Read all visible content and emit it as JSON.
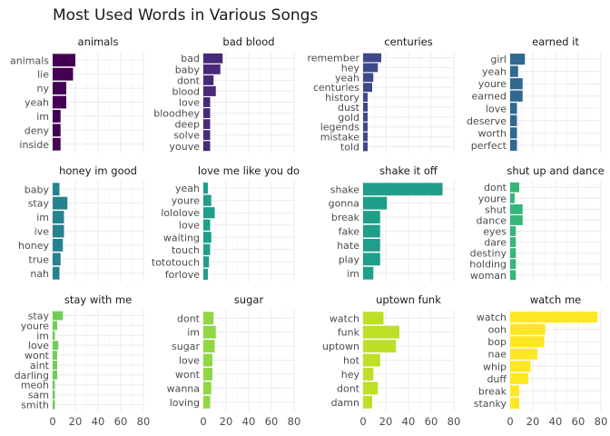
{
  "chart_data": {
    "type": "bar",
    "orientation": "horizontal",
    "title": "Most Used Words in Various Songs",
    "xlim": [
      0,
      80
    ],
    "x_ticks": [
      0,
      20,
      40,
      60,
      80
    ],
    "grid": true,
    "legend": "none",
    "layout": "facet-grid-3x4",
    "panels": [
      {
        "name": "animals",
        "color": "#440154",
        "categories": [
          "animals",
          "lie",
          "ny",
          "yeah",
          "im",
          "deny",
          "inside"
        ],
        "values": [
          20,
          18,
          12,
          12,
          7,
          7,
          7
        ]
      },
      {
        "name": "bad blood",
        "color": "#482878",
        "categories": [
          "bad",
          "baby",
          "dont",
          "blood",
          "love",
          "bloodhey",
          "deep",
          "solve",
          "youve"
        ],
        "values": [
          17,
          15,
          9,
          11,
          6,
          6,
          6,
          6,
          6
        ]
      },
      {
        "name": "centuries",
        "color": "#3e4989",
        "categories": [
          "remember",
          "hey",
          "yeah",
          "centuries",
          "history",
          "dust",
          "gold",
          "legends",
          "mistake",
          "told"
        ],
        "values": [
          16,
          13,
          9,
          8,
          4,
          4,
          4,
          4,
          4,
          4
        ]
      },
      {
        "name": "earned it",
        "color": "#31688e",
        "categories": [
          "girl",
          "yeah",
          "youre",
          "earned",
          "love",
          "deserve",
          "worth",
          "perfect"
        ],
        "values": [
          13,
          7,
          11,
          11,
          6,
          6,
          6,
          6
        ]
      },
      {
        "name": "honey im good",
        "color": "#26828e",
        "categories": [
          "baby",
          "stay",
          "im",
          "ive",
          "honey",
          "true",
          "nah"
        ],
        "values": [
          6,
          13,
          10,
          10,
          9,
          7,
          6
        ]
      },
      {
        "name": "love me like you do",
        "color": "#1f9e89",
        "categories": [
          "yeah",
          "youre",
          "lololove",
          "love",
          "waiting",
          "touch",
          "tototouch",
          "forlove"
        ],
        "values": [
          4,
          7,
          10,
          6,
          7,
          6,
          5,
          4
        ]
      },
      {
        "name": "shake it off",
        "color": "#1f9e89",
        "categories": [
          "shake",
          "gonna",
          "break",
          "fake",
          "hate",
          "play",
          "im"
        ],
        "values": [
          70,
          21,
          15,
          15,
          15,
          15,
          9
        ]
      },
      {
        "name": "shut up and dance",
        "color": "#35b779",
        "categories": [
          "dont",
          "youre",
          "shut",
          "dance",
          "eyes",
          "dare",
          "destiny",
          "holding",
          "woman"
        ],
        "values": [
          8,
          4,
          11,
          11,
          5,
          5,
          5,
          5,
          5
        ]
      },
      {
        "name": "stay with me",
        "color": "#6ece58",
        "categories": [
          "stay",
          "youre",
          "im",
          "love",
          "wont",
          "aint",
          "darling",
          "meoh",
          "sam",
          "smith"
        ],
        "values": [
          9,
          4,
          2,
          5,
          4,
          4,
          4,
          2,
          2,
          2
        ]
      },
      {
        "name": "sugar",
        "color": "#8fd744",
        "categories": [
          "dont",
          "im",
          "sugar",
          "love",
          "wont",
          "wanna",
          "loving"
        ],
        "values": [
          9,
          11,
          10,
          8,
          8,
          7,
          6
        ]
      },
      {
        "name": "uptown funk",
        "color": "#bddf26",
        "categories": [
          "watch",
          "funk",
          "uptown",
          "hot",
          "hey",
          "dont",
          "damn"
        ],
        "values": [
          18,
          32,
          29,
          15,
          9,
          13,
          8
        ]
      },
      {
        "name": "watch me",
        "color": "#fde725",
        "categories": [
          "watch",
          "ooh",
          "bop",
          "nae",
          "whip",
          "duff",
          "break",
          "stanky"
        ],
        "values": [
          77,
          31,
          30,
          24,
          18,
          16,
          8,
          8
        ]
      }
    ]
  }
}
